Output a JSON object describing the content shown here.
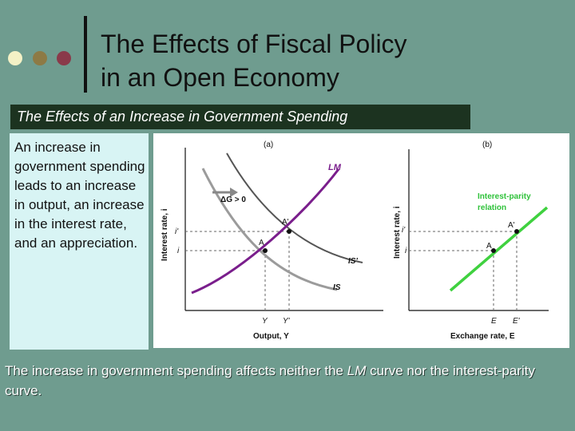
{
  "slide": {
    "title_line1": "The Effects of Fiscal Policy",
    "title_line2": "in an Open Economy",
    "subtitle": "The Effects of an Increase in Government Spending",
    "body_text": "An increase in government spending leads to an increase in output, an increase in the interest rate, and an appreciation.",
    "footer_part1": "The increase in government spending affects neither the ",
    "footer_italic": "LM",
    "footer_part2": " curve nor the interest-parity curve."
  },
  "colors": {
    "background": "#6f9c8f",
    "lm_curve": "#7a1e8c",
    "is_curves": "#9b9b9b",
    "is_shifted": "#555555",
    "ip_line": "#3fd13f",
    "ip_label": "#2fc23a",
    "subtitle_band": "#1c3320",
    "text_panel": "#d8f4f4"
  },
  "panel_a": {
    "tag": "(a)",
    "y_axis_label": "Interest rate, i",
    "x_axis_label": "Output, Y",
    "lm_label": "LM",
    "is_label": "IS",
    "is_prime_label": "IS'",
    "shift_label": "ΔG > 0",
    "point_a": "A",
    "point_a_prime": "A'",
    "tick_i": "i",
    "tick_i_prime": "i'",
    "tick_y": "Y",
    "tick_y_prime": "Y'"
  },
  "panel_b": {
    "tag": "(b)",
    "y_axis_label": "Interest rate, i",
    "x_axis_label": "Exchange rate, E",
    "ip_label_line1": "Interest-parity",
    "ip_label_line2": "relation",
    "point_a": "A",
    "point_a_prime": "A'",
    "tick_i": "i",
    "tick_i_prime": "i'",
    "tick_e": "E",
    "tick_e_prime": "E'"
  }
}
